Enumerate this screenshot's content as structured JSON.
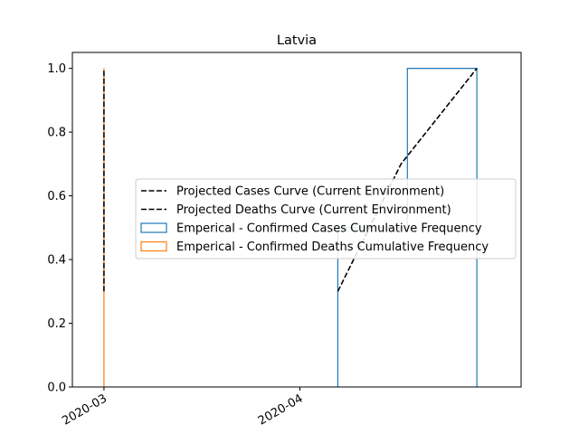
{
  "chart_data": {
    "type": "line",
    "title": "Latvia",
    "xlabel": "",
    "ylabel": "",
    "x_axis": {
      "type": "date",
      "range": [
        "2020-02-25",
        "2020-05-06"
      ],
      "ticks": [
        {
          "date": "2020-03-01",
          "label": "2020-03"
        },
        {
          "date": "2020-04-01",
          "label": "2020-04"
        }
      ]
    },
    "y_axis": {
      "range": [
        0,
        1.05
      ],
      "ticks": [
        {
          "value": 0.0,
          "label": "0.0"
        },
        {
          "value": 0.2,
          "label": "0.2"
        },
        {
          "value": 0.4,
          "label": "0.4"
        },
        {
          "value": 0.6,
          "label": "0.6"
        },
        {
          "value": 0.8,
          "label": "0.8"
        },
        {
          "value": 1.0,
          "label": "1.0"
        }
      ]
    },
    "grid": false,
    "legend_position": "center-right",
    "series": [
      {
        "name": "Projected Cases Curve (Current Environment)",
        "kind": "line",
        "style": "dashed",
        "color": "#000000",
        "points": [
          {
            "x": "2020-04-07",
            "y": 0.3
          },
          {
            "x": "2020-04-17",
            "y": 0.7
          },
          {
            "x": "2020-04-29",
            "y": 1.0
          }
        ]
      },
      {
        "name": "Projected Deaths Curve (Current Environment)",
        "kind": "line",
        "style": "dashed",
        "color": "#000000",
        "points": [
          {
            "x": "2020-03-01",
            "y": 0.3
          },
          {
            "x": "2020-03-01",
            "y": 1.0
          }
        ]
      },
      {
        "name": "Emperical - Confirmed Cases Cumulative Frequency",
        "kind": "step",
        "color": "#1f77b4",
        "points": [
          {
            "x": "2020-04-07",
            "y": 0.0
          },
          {
            "x": "2020-04-07",
            "y": 0.5
          },
          {
            "x": "2020-04-18",
            "y": 0.5
          },
          {
            "x": "2020-04-18",
            "y": 1.0
          },
          {
            "x": "2020-04-29",
            "y": 1.0
          },
          {
            "x": "2020-04-29",
            "y": 0.0
          }
        ]
      },
      {
        "name": "Emperical - Confirmed Deaths Cumulative Frequency",
        "kind": "step",
        "color": "#ff7f0e",
        "points": [
          {
            "x": "2020-03-01",
            "y": 0.0
          },
          {
            "x": "2020-03-01",
            "y": 1.0
          },
          {
            "x": "2020-03-01",
            "y": 0.0
          }
        ]
      }
    ]
  }
}
